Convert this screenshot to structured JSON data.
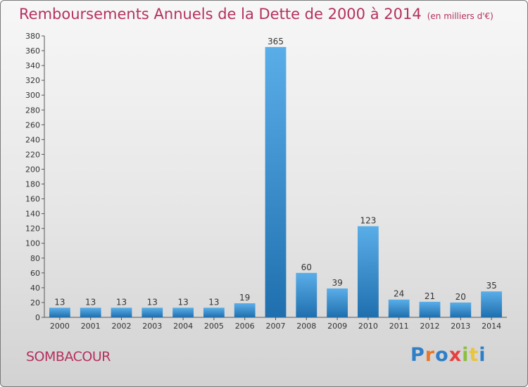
{
  "header": {
    "title": "Remboursements Annuels de la Dette de 2000 à 2014",
    "subtitle": "(en milliers d'€)"
  },
  "footer": {
    "commune": "SOMBACOUR",
    "brand": "Proxiti"
  },
  "colors": {
    "title": "#b5305f",
    "bar_light": "#5aaee8",
    "bar_dark": "#1f6fae",
    "brand_letters": [
      "#2f7fc8",
      "#e8772e",
      "#2f7fc8",
      "#e83f3f",
      "#8cbf3f",
      "#e8c43f",
      "#2f7fc8"
    ]
  },
  "chart_data": {
    "type": "bar",
    "title": "Remboursements Annuels de la Dette de 2000 à 2014",
    "subtitle": "(en milliers d'€)",
    "xlabel": "",
    "ylabel": "",
    "categories": [
      "2000",
      "2001",
      "2002",
      "2003",
      "2004",
      "2005",
      "2006",
      "2007",
      "2008",
      "2009",
      "2010",
      "2011",
      "2012",
      "2013",
      "2014"
    ],
    "values": [
      13,
      13,
      13,
      13,
      13,
      13,
      19,
      365,
      60,
      39,
      123,
      24,
      21,
      20,
      35
    ],
    "ylim": [
      0,
      380
    ],
    "yticks": [
      0,
      20,
      40,
      60,
      80,
      100,
      120,
      140,
      160,
      180,
      200,
      220,
      240,
      260,
      280,
      300,
      320,
      340,
      360,
      380
    ],
    "grid": false,
    "data_labels": true
  }
}
